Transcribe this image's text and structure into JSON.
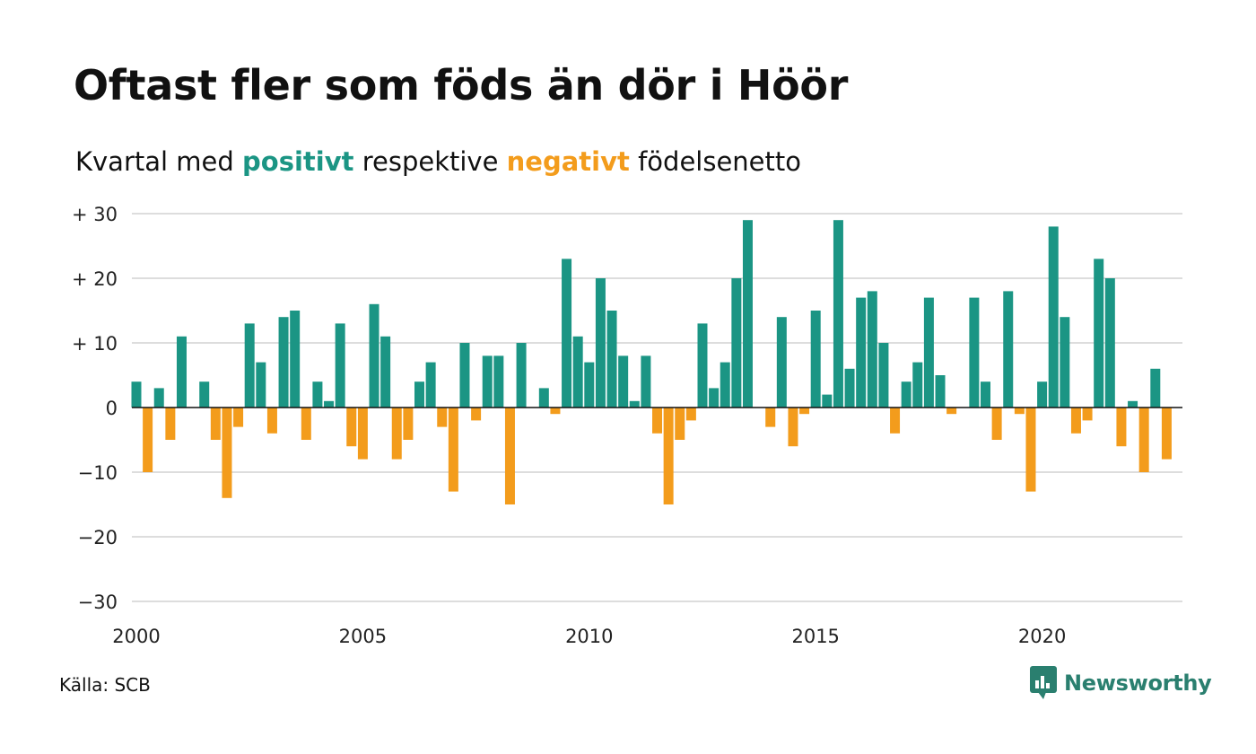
{
  "title": "Oftast fler som föds än dör i Höör",
  "subtitle": {
    "prefix": "Kvartal med ",
    "positive": "positivt",
    "middle": " respektive ",
    "negative": "negativt",
    "suffix": " födelsenetto"
  },
  "source": "Källa: SCB",
  "brand": "Newsworthy",
  "colors": {
    "positive": "#1b9584",
    "negative": "#f39c1c",
    "grid": "#dddddd",
    "baseline": "#111111",
    "brand": "#2a7f6f"
  },
  "chart_data": {
    "type": "bar",
    "start_year": 2000,
    "periods_per_year": 4,
    "ylim": [
      -30,
      30
    ],
    "y_ticks": [
      {
        "value": 30,
        "label": "+ 30"
      },
      {
        "value": 20,
        "label": "+ 20"
      },
      {
        "value": 10,
        "label": "+ 10"
      },
      {
        "value": 0,
        "label": "0"
      },
      {
        "value": -10,
        "label": "−10"
      },
      {
        "value": -20,
        "label": "−20"
      },
      {
        "value": -30,
        "label": "−30"
      }
    ],
    "x_ticks": [
      {
        "year": 2000,
        "label": "2000"
      },
      {
        "year": 2005,
        "label": "2005"
      },
      {
        "year": 2010,
        "label": "2010"
      },
      {
        "year": 2015,
        "label": "2015"
      },
      {
        "year": 2020,
        "label": "2020"
      }
    ],
    "grid": true,
    "values": [
      4,
      -10,
      3,
      -5,
      11,
      0,
      4,
      -5,
      -14,
      -3,
      13,
      7,
      -4,
      14,
      15,
      -5,
      4,
      1,
      13,
      -6,
      -8,
      16,
      11,
      -8,
      -5,
      4,
      7,
      -3,
      -13,
      10,
      -2,
      8,
      8,
      -15,
      10,
      0,
      3,
      -1,
      23,
      11,
      7,
      20,
      15,
      8,
      1,
      8,
      -4,
      -15,
      -5,
      -2,
      13,
      3,
      7,
      20,
      29,
      0,
      -3,
      14,
      -6,
      -1,
      15,
      2,
      29,
      6,
      17,
      18,
      10,
      -4,
      4,
      7,
      17,
      5,
      -1,
      0,
      17,
      4,
      -5,
      18,
      -1,
      -13,
      4,
      28,
      14,
      -4,
      -2,
      23,
      20,
      -6,
      1,
      -10,
      6,
      -8
    ]
  }
}
